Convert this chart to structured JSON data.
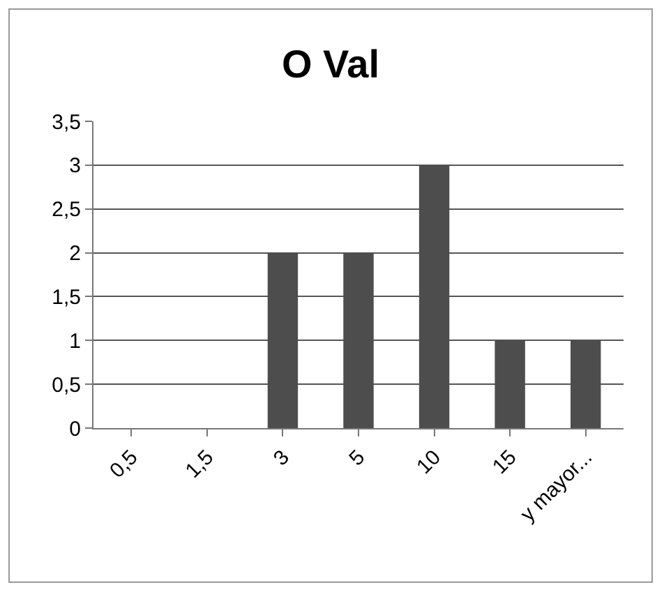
{
  "chart_data": {
    "type": "bar",
    "title": "O Val",
    "categories": [
      "0,5",
      "1,5",
      "3",
      "5",
      "10",
      "15",
      "y mayor..."
    ],
    "values": [
      0,
      0,
      2,
      2,
      3,
      1,
      1
    ],
    "color": "#4d4d4d",
    "ylim": [
      0,
      3.5
    ],
    "yticks": [
      0,
      {
        "value": 0.5,
        "label": "0,5"
      },
      1,
      {
        "value": 1.5,
        "label": "1,5"
      },
      2,
      {
        "value": 2.5,
        "label": "2,5"
      },
      3,
      {
        "value": 3.5,
        "label": "3,5"
      }
    ],
    "grid": "y"
  }
}
